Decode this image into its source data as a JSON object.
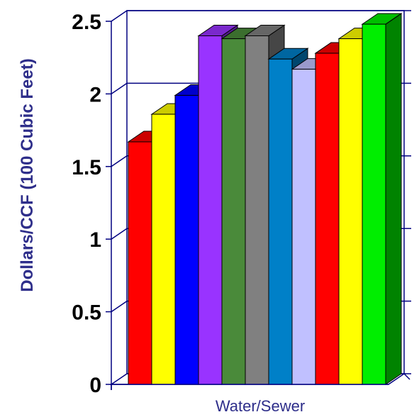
{
  "chart_data": {
    "type": "bar",
    "ylabel": "Dollars/CCF (100 Cubic Feet)",
    "xlabel": "",
    "categories": [
      "Water/Sewer"
    ],
    "ylim": [
      0,
      2.5
    ],
    "yticks": [
      "0",
      "0.5",
      "1",
      "1.5",
      "2",
      "2.5"
    ],
    "grid": true,
    "legend": "none",
    "three_d": true,
    "series": [
      {
        "value": 1.67,
        "color": "#ff0000"
      },
      {
        "value": 1.86,
        "color": "#ffff00"
      },
      {
        "value": 1.99,
        "color": "#0000ff"
      },
      {
        "value": 2.4,
        "color": "#9933ff"
      },
      {
        "value": 2.38,
        "color": "#4a8a3a"
      },
      {
        "value": 2.4,
        "color": "#808080"
      },
      {
        "value": 2.24,
        "color": "#0080c8"
      },
      {
        "value": 2.17,
        "color": "#c0c0ff"
      },
      {
        "value": 2.28,
        "color": "#ff0000"
      },
      {
        "value": 2.38,
        "color": "#ffff00"
      },
      {
        "value": 2.48,
        "color": "#00ee00"
      }
    ]
  }
}
